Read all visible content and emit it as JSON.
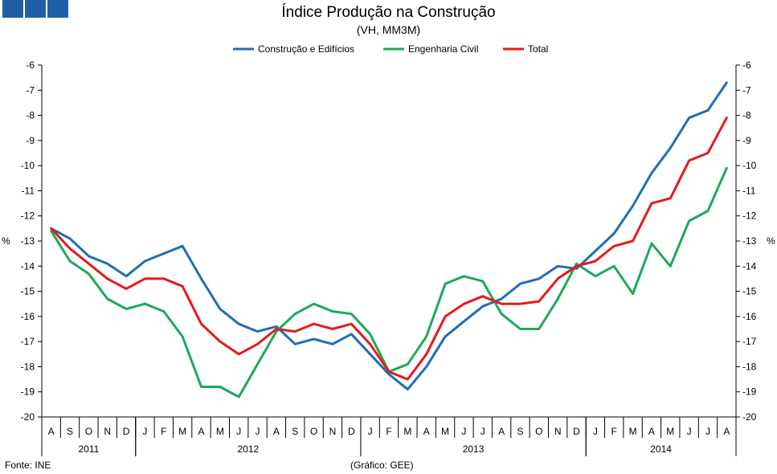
{
  "logo": {
    "color": "#1f5fa6"
  },
  "chart_data": {
    "type": "line",
    "title": "Índice Produção na Construção",
    "subtitle": "(VH, MM3M)",
    "ylabel": "%",
    "ylabel_right": "%",
    "ylim": [
      -20,
      -6
    ],
    "yticks": [
      -6,
      -7,
      -8,
      -9,
      -10,
      -11,
      -12,
      -13,
      -14,
      -15,
      -16,
      -17,
      -18,
      -19,
      -20
    ],
    "months": [
      "A",
      "S",
      "O",
      "N",
      "D",
      "J",
      "F",
      "M",
      "A",
      "M",
      "J",
      "J",
      "A",
      "S",
      "O",
      "N",
      "D",
      "J",
      "F",
      "M",
      "A",
      "M",
      "J",
      "J",
      "A",
      "S",
      "O",
      "N",
      "D",
      "J",
      "F",
      "M",
      "A",
      "M",
      "J",
      "J",
      "A"
    ],
    "years": [
      {
        "label": "2011",
        "start": 0,
        "end": 5
      },
      {
        "label": "2012",
        "start": 5,
        "end": 17
      },
      {
        "label": "2013",
        "start": 17,
        "end": 29
      },
      {
        "label": "2014",
        "start": 29,
        "end": 37
      }
    ],
    "legend_position": "top-center",
    "series": [
      {
        "name": "Construção e Edifícios",
        "color": "#1f6fb4",
        "values": [
          -12.5,
          -12.9,
          -13.6,
          -13.9,
          -14.4,
          -13.8,
          -13.5,
          -13.2,
          -14.5,
          -15.7,
          -16.3,
          -16.6,
          -16.4,
          -17.1,
          -16.9,
          -17.1,
          -16.7,
          -17.5,
          -18.3,
          -18.9,
          -18.0,
          -16.8,
          -16.2,
          -15.6,
          -15.3,
          -14.7,
          -14.5,
          -14.0,
          -14.1,
          -13.4,
          -12.7,
          -11.6,
          -10.3,
          -9.3,
          -8.1,
          -7.8,
          -6.7
        ]
      },
      {
        "name": "Engenharia Civil",
        "color": "#1ea85b",
        "values": [
          -12.6,
          -13.8,
          -14.3,
          -15.3,
          -15.7,
          -15.5,
          -15.8,
          -16.8,
          -18.8,
          -18.8,
          -19.2,
          -17.9,
          -16.6,
          -15.9,
          -15.5,
          -15.8,
          -15.9,
          -16.7,
          -18.2,
          -17.9,
          -16.8,
          -14.7,
          -14.4,
          -14.6,
          -15.9,
          -16.5,
          -16.5,
          -15.3,
          -13.9,
          -14.4,
          -14.0,
          -15.1,
          -13.1,
          -14.0,
          -12.2,
          -11.8,
          -10.1
        ]
      },
      {
        "name": "Total",
        "color": "#e8191b",
        "values": [
          -12.5,
          -13.3,
          -13.9,
          -14.5,
          -14.9,
          -14.5,
          -14.5,
          -14.8,
          -16.3,
          -17.0,
          -17.5,
          -17.1,
          -16.5,
          -16.6,
          -16.3,
          -16.5,
          -16.3,
          -17.1,
          -18.2,
          -18.5,
          -17.5,
          -16.0,
          -15.5,
          -15.2,
          -15.5,
          -15.5,
          -15.4,
          -14.5,
          -14.0,
          -13.8,
          -13.2,
          -13.0,
          -11.5,
          -11.3,
          -9.8,
          -9.5,
          -8.1
        ]
      }
    ]
  },
  "footer": {
    "source": "Fonte: INE",
    "credit": "(Gráfico: GEE)"
  }
}
